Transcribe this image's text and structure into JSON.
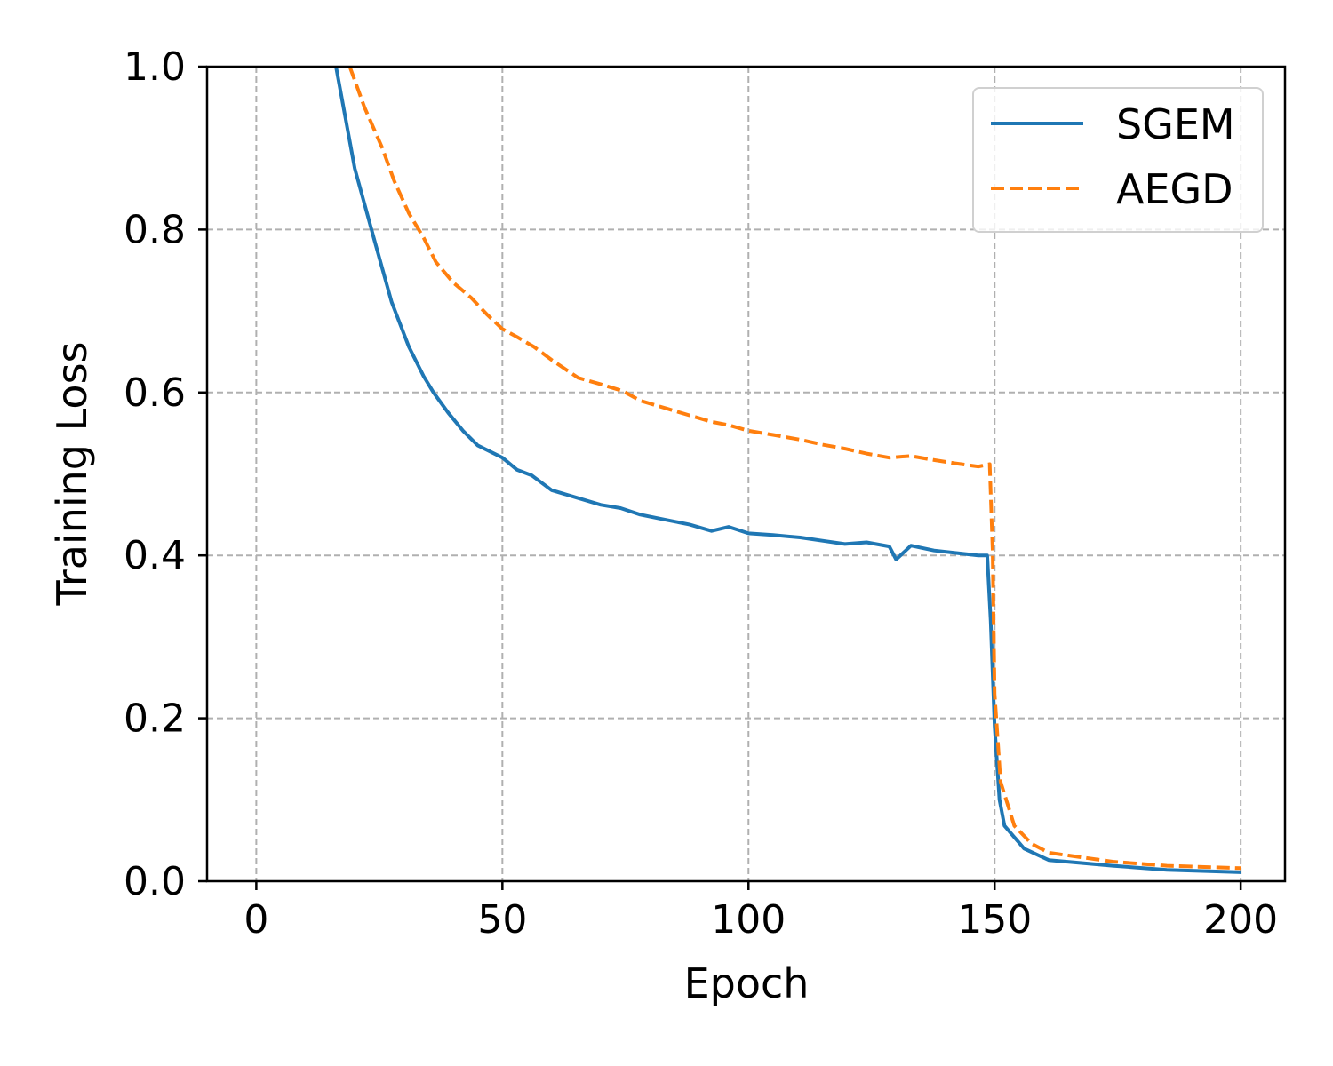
{
  "chart_data": {
    "type": "line",
    "title": "",
    "xlabel": "Epoch",
    "ylabel": "Training Loss",
    "xlim": [
      -10,
      209
    ],
    "ylim": [
      0,
      1.0
    ],
    "xticks": [
      0,
      50,
      100,
      150,
      200
    ],
    "xtick_labels": [
      "0",
      "50",
      "100",
      "150",
      "200"
    ],
    "yticks": [
      0,
      0.2,
      0.4,
      0.6,
      0.8,
      1.0
    ],
    "ytick_labels": [
      "0.0",
      "0.2",
      "0.4",
      "0.6",
      "0.8",
      "1.0"
    ],
    "grid": true,
    "legend_position": "top-right",
    "series": [
      {
        "name": "SGEM",
        "color": "#1f77b4",
        "style": "solid",
        "x": [
          16.2,
          20,
          24,
          27.5,
          31,
          34,
          36,
          39,
          42,
          45,
          50,
          53,
          56,
          60,
          65,
          70,
          74,
          78,
          83,
          88,
          92.5,
          96,
          100,
          105,
          110.5,
          115,
          119.6,
          124,
          128.6,
          130,
          133,
          137.7,
          142,
          146.7,
          148.5,
          149.2,
          150,
          151,
          152,
          156,
          161,
          174,
          185,
          200
        ],
        "y": [
          1.0,
          0.875,
          0.787,
          0.711,
          0.656,
          0.62,
          0.6,
          0.575,
          0.553,
          0.535,
          0.52,
          0.505,
          0.498,
          0.48,
          0.471,
          0.462,
          0.458,
          0.45,
          0.444,
          0.438,
          0.43,
          0.435,
          0.427,
          0.425,
          0.422,
          0.418,
          0.414,
          0.416,
          0.411,
          0.395,
          0.412,
          0.406,
          0.403,
          0.4,
          0.4,
          0.32,
          0.19,
          0.1,
          0.068,
          0.04,
          0.026,
          0.019,
          0.014,
          0.011
        ]
      },
      {
        "name": "AEGD",
        "color": "#ff7f0e",
        "style": "dashed",
        "x": [
          19,
          22,
          25.6,
          28,
          31,
          34,
          36.5,
          40,
          43.7,
          47,
          50,
          53,
          56.4,
          60,
          65.4,
          70,
          74.4,
          78,
          83.5,
          88,
          92.5,
          96,
          100,
          105,
          110.6,
          115,
          119.6,
          124,
          128.6,
          133,
          137.7,
          142,
          146.7,
          149,
          149.6,
          150,
          151.2,
          154,
          157.5,
          161,
          174,
          185,
          200
        ],
        "y": [
          1.0,
          0.95,
          0.9,
          0.86,
          0.82,
          0.79,
          0.76,
          0.735,
          0.716,
          0.695,
          0.678,
          0.668,
          0.656,
          0.64,
          0.618,
          0.61,
          0.602,
          0.59,
          0.58,
          0.572,
          0.564,
          0.56,
          0.553,
          0.548,
          0.542,
          0.536,
          0.531,
          0.525,
          0.52,
          0.522,
          0.517,
          0.513,
          0.509,
          0.512,
          0.406,
          0.23,
          0.122,
          0.068,
          0.046,
          0.035,
          0.024,
          0.019,
          0.016
        ]
      }
    ]
  }
}
